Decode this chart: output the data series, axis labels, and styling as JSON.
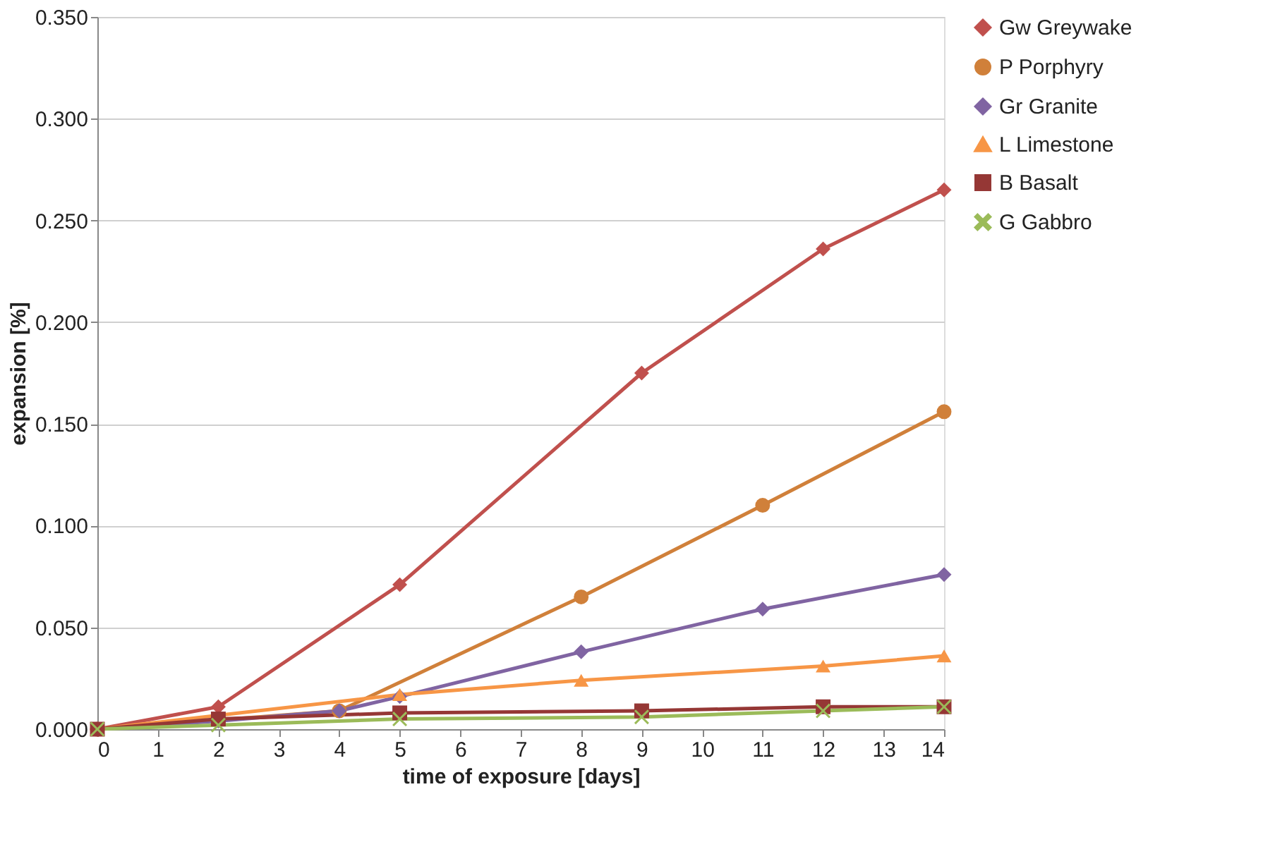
{
  "chart_data": {
    "type": "line",
    "xlabel": "time of exposure [days]",
    "ylabel": "expansion [%]",
    "xlim": [
      0,
      14
    ],
    "xticks": [
      0,
      1,
      2,
      3,
      4,
      5,
      6,
      7,
      8,
      9,
      10,
      11,
      12,
      13,
      14
    ],
    "ylim": [
      0,
      0.35
    ],
    "yticks": [
      {
        "value": 0,
        "label": "0.000"
      },
      {
        "value": 0.05,
        "label": "0.050"
      },
      {
        "value": 0.1,
        "label": "0.100"
      },
      {
        "value": 0.15,
        "label": "0.150"
      },
      {
        "value": 0.2,
        "label": "0.200"
      },
      {
        "value": 0.25,
        "label": "0.250"
      },
      {
        "value": 0.3,
        "label": "0.300"
      },
      {
        "value": 0.35,
        "label": "0.350"
      }
    ],
    "grid": "y",
    "legend": "right",
    "line_style": "solid",
    "series": [
      {
        "name": "Gw Greywake",
        "color": "#c0504d",
        "marker": "diamond",
        "x": [
          0,
          2,
          5,
          9,
          12,
          14
        ],
        "values": [
          0,
          0.011,
          0.071,
          0.175,
          0.236,
          0.265
        ]
      },
      {
        "name": "P Porphyry",
        "color": "#d0803a",
        "marker": "circle",
        "x": [
          0,
          4,
          8,
          11,
          14
        ],
        "values": [
          0,
          0.009,
          0.065,
          0.11,
          0.156
        ]
      },
      {
        "name": "Gr Granite",
        "color": "#8064a2",
        "marker": "diamond",
        "x": [
          0,
          2,
          4,
          5,
          8,
          11,
          14
        ],
        "values": [
          0,
          0.004,
          0.009,
          0.016,
          0.038,
          0.059,
          0.076
        ]
      },
      {
        "name": "L Limestone",
        "color": "#f79646",
        "marker": "triangle",
        "x": [
          0,
          5,
          8,
          12,
          14
        ],
        "values": [
          0,
          0.017,
          0.024,
          0.031,
          0.036
        ]
      },
      {
        "name": "B Basalt",
        "color": "#953735",
        "marker": "square",
        "x": [
          0,
          2,
          5,
          9,
          12,
          14
        ],
        "values": [
          0,
          0.005,
          0.008,
          0.009,
          0.011,
          0.011
        ]
      },
      {
        "name": "G Gabbro",
        "color": "#9bbb59",
        "marker": "cross",
        "x": [
          0,
          2,
          5,
          9,
          12,
          14
        ],
        "values": [
          0,
          0.002,
          0.005,
          0.006,
          0.009,
          0.011
        ]
      }
    ]
  }
}
